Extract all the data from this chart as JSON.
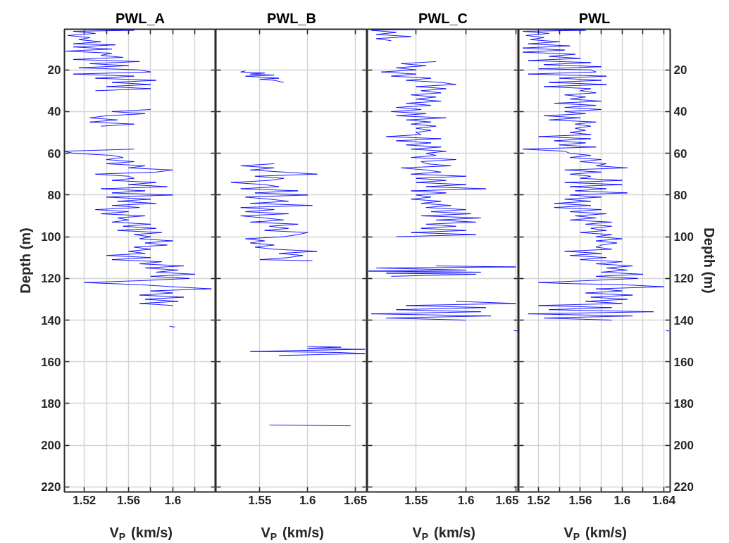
{
  "chart_data": [
    {
      "type": "line",
      "title": "PWL_A",
      "xlabel": "V$_{P}$ (km/s)",
      "ylabel": "Depth (m)",
      "grid": true,
      "xlim": [
        1.502,
        1.639
      ],
      "xticks": [
        1.52,
        {
          "value": 1.54,
          "label": null
        },
        1.56,
        {
          "value": 1.58,
          "label": null
        },
        1.6,
        {
          "value": 1.62,
          "label": null
        }
      ],
      "ylim": [
        222.4,
        0.5
      ],
      "yticks": [
        20,
        40,
        60,
        80,
        100,
        120,
        140,
        160,
        180,
        200,
        220
      ],
      "series": [
        {
          "color": "#0000ff",
          "x": [
            1.52,
            1.565,
            1.51,
            1.53,
            1.505,
            1.525,
            1.515,
            1.535,
            1.51,
            1.548,
            1.51,
            1.545,
            1.503,
            1.545,
            1.535,
            1.555,
            1.51,
            1.57,
            1.525,
            1.56,
            1.515,
            1.57,
            1.58,
            1.51,
            1.565,
            1.53,
            1.585,
            1.545,
            1.58,
            1.54,
            1.58,
            1.53,
            null,
            1.58,
            1.545,
            1.575,
            1.54,
            1.525,
            1.55,
            1.525,
            1.565,
            1.535,
            null,
            1.565,
            1.502,
            1.51,
            1.545,
            1.555,
            1.54,
            1.565,
            1.54,
            1.575,
            1.56,
            1.6,
            1.585,
            1.53,
            1.56,
            1.565,
            1.545,
            1.585,
            1.56,
            1.595,
            1.535,
            1.575,
            1.545,
            1.6,
            1.54,
            1.58,
            1.55,
            1.585,
            1.545,
            1.57,
            1.53,
            1.56,
            1.535,
            1.575,
            1.55,
            1.56,
            1.545,
            1.58,
            1.555,
            1.585,
            1.55,
            1.59,
            1.565,
            1.58,
            1.57,
            1.6,
            1.575,
            1.595,
            1.565,
            1.58,
            1.56,
            1.575,
            1.54,
            1.58,
            1.545,
            1.59,
            1.57,
            1.61,
            1.575,
            1.605,
            1.585,
            1.62,
            1.58,
            1.615,
            1.575,
            1.52,
            1.57,
            1.6,
            1.635,
            1.58,
            1.6,
            1.57,
            1.61,
            1.575,
            1.605,
            1.57,
            1.6
          ],
          "values": [
            0.5,
            1,
            1.5,
            2.5,
            3.5,
            4.5,
            5.5,
            6.5,
            7.5,
            8,
            9,
            10,
            11,
            12,
            13,
            14,
            15,
            16,
            17,
            18,
            19,
            20,
            21,
            22,
            23,
            24,
            25,
            26,
            27,
            28,
            29,
            30,
            null,
            39,
            40,
            41,
            42,
            43,
            44,
            45,
            46,
            47,
            null,
            58,
            59,
            60,
            61,
            62,
            63,
            64,
            65,
            66,
            67,
            68,
            69,
            70,
            71,
            72,
            73,
            74,
            75,
            76,
            77,
            78,
            79,
            80,
            81,
            82,
            83,
            84,
            85,
            86,
            87,
            88,
            89,
            90,
            91,
            92,
            93,
            94,
            95,
            96,
            97,
            98,
            99,
            100,
            101,
            102,
            103,
            104,
            105,
            106,
            107,
            108,
            109,
            110,
            111,
            112,
            113,
            114,
            115,
            116,
            117,
            118,
            119,
            120,
            121,
            122,
            123,
            124,
            125,
            126,
            127,
            128,
            129,
            130,
            131,
            132,
            133
          ]
        },
        {
          "color": "#0000ff",
          "x": [
            1.597,
            1.602
          ],
          "values": [
            143,
            143.3
          ]
        }
      ]
    },
    {
      "type": "line",
      "title": "PWL_B",
      "xlabel": "V$_{P}$ (km/s)",
      "grid": true,
      "tick_labels": "x",
      "xlim": [
        1.504,
        1.6625
      ],
      "xticks": [
        1.55,
        1.6,
        1.65
      ],
      "ylim": [
        222.4,
        0.5
      ],
      "yticks": [
        20,
        40,
        60,
        80,
        100,
        120,
        140,
        160,
        180,
        200,
        220
      ],
      "series": [
        {
          "color": "#0000ff",
          "x": [
            1.535,
            1.53,
            1.555,
            1.54,
            1.565,
            1.535,
            1.57,
            1.55,
            1.565,
            1.575,
            null,
            1.565,
            1.53,
            1.565,
            1.54,
            1.575,
            1.61,
            1.545,
            1.575,
            1.56,
            1.52,
            1.555,
            1.57,
            1.53,
            1.59,
            1.545,
            1.6,
            1.535,
            1.56,
            1.58,
            1.54,
            1.605,
            1.53,
            1.565,
            1.535,
            1.58,
            1.53,
            1.555,
            1.575,
            1.54,
            1.59,
            1.56,
            1.58,
            1.555,
            1.6,
            1.59,
            1.575,
            1.535,
            1.555,
            1.54,
            1.565,
            1.545,
            1.565,
            1.61,
            1.57,
            1.595,
            1.58,
            1.55,
            1.605,
            null,
            1.6,
            1.635,
            1.6,
            1.66,
            1.54,
            1.63,
            1.66,
            1.57,
            null,
            1.56,
            1.6,
            1.645
          ],
          "values": [
            20.5,
            21,
            21.5,
            22,
            22.5,
            23,
            24,
            24.5,
            25,
            26,
            null,
            65,
            66,
            67,
            68,
            69,
            70,
            71,
            72,
            73,
            74,
            75,
            76,
            77,
            78,
            79,
            80,
            81,
            82,
            83,
            84,
            85,
            86,
            87,
            88,
            89,
            90,
            91,
            92,
            93,
            94,
            95,
            96,
            97,
            98,
            99,
            100,
            101,
            102,
            103,
            104,
            105,
            106,
            107,
            108,
            109,
            110,
            111,
            111.5,
            null,
            152.5,
            153,
            153.5,
            154,
            155,
            155.5,
            156,
            157,
            null,
            190.3,
            190.5,
            190.7
          ]
        }
      ]
    },
    {
      "type": "line",
      "title": "PWL_C",
      "xlabel": "V$_{P}$ (km/s)",
      "grid": true,
      "tick_labels": "x",
      "xlim": [
        1.501,
        1.653
      ],
      "xticks": [
        1.55,
        1.6,
        1.65
      ],
      "ylim": [
        222.4,
        0.5
      ],
      "yticks": [
        20,
        40,
        60,
        80,
        100,
        120,
        140,
        160,
        180,
        200,
        220
      ],
      "series": [
        {
          "color": "#0000ff",
          "x": [
            1.55,
            1.505,
            1.53,
            1.51,
            1.545,
            1.51,
            1.525,
            null,
            1.57,
            1.535,
            1.56,
            1.53,
            1.55,
            1.515,
            1.55,
            1.525,
            1.565,
            1.54,
            1.575,
            1.59,
            1.55,
            1.58,
            1.555,
            1.575,
            1.545,
            1.57,
            1.55,
            1.575,
            1.54,
            1.565,
            1.53,
            1.555,
            1.525,
            1.56,
            1.53,
            1.58,
            1.54,
            1.565,
            1.545,
            1.57,
            1.55,
            1.565,
            1.55,
            1.555,
            1.52,
            1.575,
            1.53,
            1.565,
            1.54,
            1.575,
            1.545,
            1.58,
            1.56,
            1.57,
            1.545,
            1.59,
            1.555,
            1.56,
            1.585,
            1.535,
            1.56,
            1.575,
            1.545,
            1.6,
            1.55,
            1.58,
            1.55,
            1.6,
            1.56,
            1.62,
            1.545,
            1.58,
            1.55,
            1.565,
            1.545,
            1.575,
            1.555,
            1.585,
            1.56,
            1.6,
            1.565,
            1.605,
            1.555,
            1.615,
            1.57,
            1.61,
            1.56,
            1.59,
            1.555,
            1.6,
            1.545,
            1.61,
            1.53,
            null,
            1.57,
            1.65,
            1.51,
            1.6,
            1.502,
            1.615,
            1.52,
            1.61,
            1.525,
            null,
            1.59,
            1.65,
            1.54,
            1.62,
            1.53,
            1.615,
            1.505,
            1.625,
            1.52,
            1.6,
            null,
            1.648,
            1.652
          ],
          "values": [
            0.6,
            1,
            2,
            3,
            4,
            5,
            6,
            null,
            16,
            17,
            18,
            19,
            20,
            21,
            22,
            23,
            24,
            25,
            26,
            27,
            28,
            29,
            30,
            31,
            32,
            33,
            34,
            35,
            36,
            37,
            38,
            39,
            40,
            41,
            42,
            43,
            44,
            45,
            46,
            47,
            48,
            49,
            50,
            51,
            52,
            53,
            54,
            55,
            56,
            57,
            58,
            59,
            60,
            61,
            62,
            63,
            64,
            65,
            66,
            67,
            68,
            69,
            70,
            71,
            72,
            73,
            74,
            75,
            76,
            77,
            78,
            79,
            80,
            81,
            82,
            83,
            84,
            85,
            86,
            87,
            88,
            89,
            90,
            91,
            92,
            93,
            94,
            95,
            96,
            97,
            98,
            99,
            100,
            null,
            114,
            114.5,
            115,
            116,
            116.5,
            117,
            117.5,
            118,
            119,
            null,
            131,
            132,
            133,
            134,
            135,
            136,
            137,
            138,
            139,
            140,
            null,
            145,
            145.2
          ]
        }
      ]
    },
    {
      "type": "line",
      "title": "PWL",
      "xlabel": "V$_{P}$ (km/s)",
      "y2label": "Depth (m)",
      "grid": true,
      "xlim": [
        1.501,
        1.646
      ],
      "xticks": [
        1.52,
        {
          "value": 1.54,
          "label": null
        },
        1.56,
        {
          "value": 1.58,
          "label": null
        },
        1.6,
        {
          "value": 1.62,
          "label": null
        },
        1.64
      ],
      "y2lim": [
        222.4,
        0.5
      ],
      "y2ticks": [
        20,
        40,
        60,
        80,
        100,
        120,
        140,
        160,
        180,
        200,
        220
      ],
      "series": [
        {
          "color": "#0000ff",
          "axis": "y2",
          "x": [
            1.52,
            1.565,
            1.505,
            1.53,
            1.508,
            1.525,
            1.512,
            1.54,
            1.51,
            1.55,
            1.505,
            1.545,
            1.505,
            1.555,
            1.53,
            1.56,
            1.51,
            1.57,
            1.525,
            1.58,
            1.52,
            1.57,
            1.575,
            1.51,
            1.585,
            1.54,
            1.58,
            1.53,
            1.585,
            1.525,
            1.57,
            1.56,
            1.575,
            1.545,
            1.565,
            1.55,
            1.58,
            1.535,
            1.575,
            1.545,
            1.58,
            1.545,
            1.565,
            1.525,
            1.56,
            1.53,
            1.575,
            1.555,
            1.57,
            1.555,
            1.565,
            1.55,
            1.57,
            1.52,
            1.57,
            1.535,
            1.565,
            1.54,
            1.575,
            1.505,
            1.545,
            1.55,
            1.57,
            1.55,
            1.58,
            1.56,
            1.585,
            1.575,
            1.605,
            1.545,
            1.58,
            1.55,
            1.57,
            1.56,
            1.6,
            1.545,
            1.6,
            1.55,
            1.585,
            1.555,
            1.605,
            1.55,
            1.58,
            1.545,
            1.57,
            1.535,
            1.57,
            1.535,
            1.58,
            1.55,
            1.585,
            1.555,
            1.575,
            1.55,
            1.59,
            1.565,
            1.59,
            1.57,
            1.585,
            1.56,
            1.59,
            1.575,
            1.6,
            1.575,
            1.595,
            1.58,
            1.575,
            1.59,
            1.545,
            1.58,
            1.55,
            1.585,
            1.56,
            1.6,
            1.575,
            1.61,
            1.585,
            1.605,
            1.58,
            1.62,
            1.575,
            1.615,
            1.57,
            1.52,
            1.55,
            1.6,
            1.64,
            1.575,
            1.6,
            1.565,
            1.61,
            1.57,
            1.605,
            1.565,
            1.6,
            1.52,
            1.59,
            1.53,
            1.63,
            1.51,
            1.61,
            1.525,
            1.59,
            null,
            1.642,
            1.645
          ],
          "values": [
            0.5,
            1,
            1.5,
            2.5,
            3.5,
            4.5,
            5.5,
            6.5,
            7.5,
            8.5,
            9.5,
            10.5,
            11.5,
            12.5,
            13.5,
            14.5,
            15.5,
            16.5,
            17.5,
            18.5,
            19.5,
            20,
            21,
            22,
            23,
            24,
            25,
            26,
            27,
            28,
            29,
            30,
            31,
            32,
            33,
            34,
            35,
            36,
            37,
            38,
            39,
            40,
            41,
            42,
            43,
            44,
            45,
            46,
            47,
            48,
            49,
            50,
            51,
            52,
            53,
            54,
            55,
            56,
            57,
            58,
            59,
            60,
            61,
            62,
            63,
            64,
            65,
            66,
            67,
            68,
            69,
            70,
            71,
            72,
            73,
            74,
            75,
            76,
            77,
            78,
            79,
            80,
            81,
            82,
            83,
            84,
            85,
            86,
            87,
            88,
            89,
            90,
            91,
            92,
            93,
            94,
            95,
            96,
            97,
            98,
            99,
            100,
            101,
            102,
            103,
            104,
            105,
            106,
            107,
            108,
            109,
            110,
            111,
            112,
            113,
            114,
            115,
            116,
            117,
            118,
            119,
            120,
            121,
            122,
            122.5,
            123,
            124,
            125,
            126,
            127,
            128,
            129,
            130,
            131,
            132,
            133,
            134,
            135,
            136,
            137,
            138,
            139,
            140,
            null,
            145,
            145.2
          ]
        }
      ]
    }
  ]
}
